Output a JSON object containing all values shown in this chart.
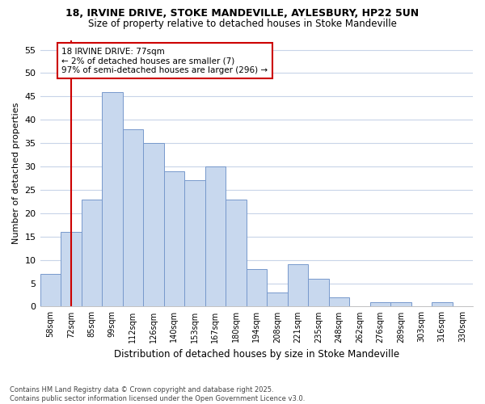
{
  "title1": "18, IRVINE DRIVE, STOKE MANDEVILLE, AYLESBURY, HP22 5UN",
  "title2": "Size of property relative to detached houses in Stoke Mandeville",
  "xlabel": "Distribution of detached houses by size in Stoke Mandeville",
  "ylabel": "Number of detached properties",
  "categories": [
    "58sqm",
    "72sqm",
    "85sqm",
    "99sqm",
    "112sqm",
    "126sqm",
    "140sqm",
    "153sqm",
    "167sqm",
    "180sqm",
    "194sqm",
    "208sqm",
    "221sqm",
    "235sqm",
    "248sqm",
    "262sqm",
    "276sqm",
    "289sqm",
    "303sqm",
    "316sqm",
    "330sqm"
  ],
  "values": [
    7,
    16,
    23,
    46,
    38,
    35,
    29,
    27,
    30,
    23,
    8,
    3,
    9,
    6,
    2,
    0,
    1,
    1,
    0,
    1,
    0
  ],
  "bar_color": "#c8d8ee",
  "bar_edge_color": "#7799cc",
  "vline_x_idx": 1,
  "vline_color": "#cc0000",
  "annotation_line1": "18 IRVINE DRIVE: 77sqm",
  "annotation_line2": "← 2% of detached houses are smaller (7)",
  "annotation_line3": "97% of semi-detached houses are larger (296) →",
  "annotation_box_color": "#ffffff",
  "annotation_box_edge_color": "#cc0000",
  "ylim": [
    0,
    57
  ],
  "yticks": [
    0,
    5,
    10,
    15,
    20,
    25,
    30,
    35,
    40,
    45,
    50,
    55
  ],
  "footer": "Contains HM Land Registry data © Crown copyright and database right 2025.\nContains public sector information licensed under the Open Government Licence v3.0.",
  "bg_color": "#ffffff",
  "plot_bg_color": "#ffffff",
  "grid_color": "#c8d4e8"
}
